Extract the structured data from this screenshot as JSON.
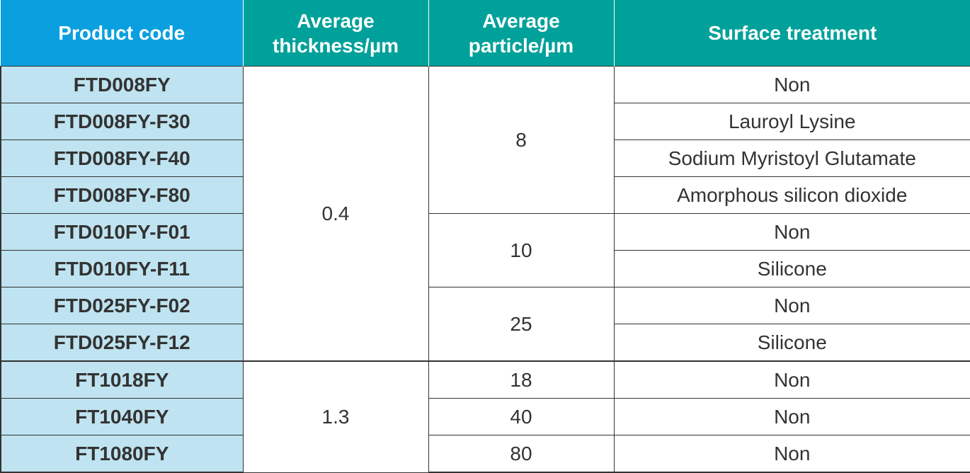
{
  "headers": {
    "product_code": "Product code",
    "avg_thickness_line1": "Average",
    "avg_thickness_line2": "thickness/µm",
    "avg_particle_line1": "Average",
    "avg_particle_line2": "particle/µm",
    "surface_treatment": "Surface treatment"
  },
  "rows": [
    {
      "code": "FTD008FY",
      "thickness": "0.4",
      "particle": "8",
      "treatment": "Non"
    },
    {
      "code": "FTD008FY-F30",
      "treatment": "Lauroyl Lysine"
    },
    {
      "code": "FTD008FY-F40",
      "treatment": "Sodium Myristoyl Glutamate"
    },
    {
      "code": "FTD008FY-F80",
      "treatment": "Amorphous silicon dioxide"
    },
    {
      "code": "FTD010FY-F01",
      "particle": "10",
      "treatment": "Non"
    },
    {
      "code": "FTD010FY-F11",
      "treatment": "Silicone"
    },
    {
      "code": "FTD025FY-F02",
      "particle": "25",
      "treatment": "Non"
    },
    {
      "code": "FTD025FY-F12",
      "treatment": "Silicone"
    },
    {
      "code": "FT1018FY",
      "thickness": "1.3",
      "particle": "18",
      "treatment": "Non"
    },
    {
      "code": "FT1040FY",
      "particle": "40",
      "treatment": "Non"
    },
    {
      "code": "FT1080FY",
      "particle": "80",
      "treatment": "Non"
    }
  ],
  "colors": {
    "header_product": "#0aa0df",
    "header_teal": "#00a19a",
    "code_cell_bg": "#bfe3f0",
    "border": "#333333"
  }
}
